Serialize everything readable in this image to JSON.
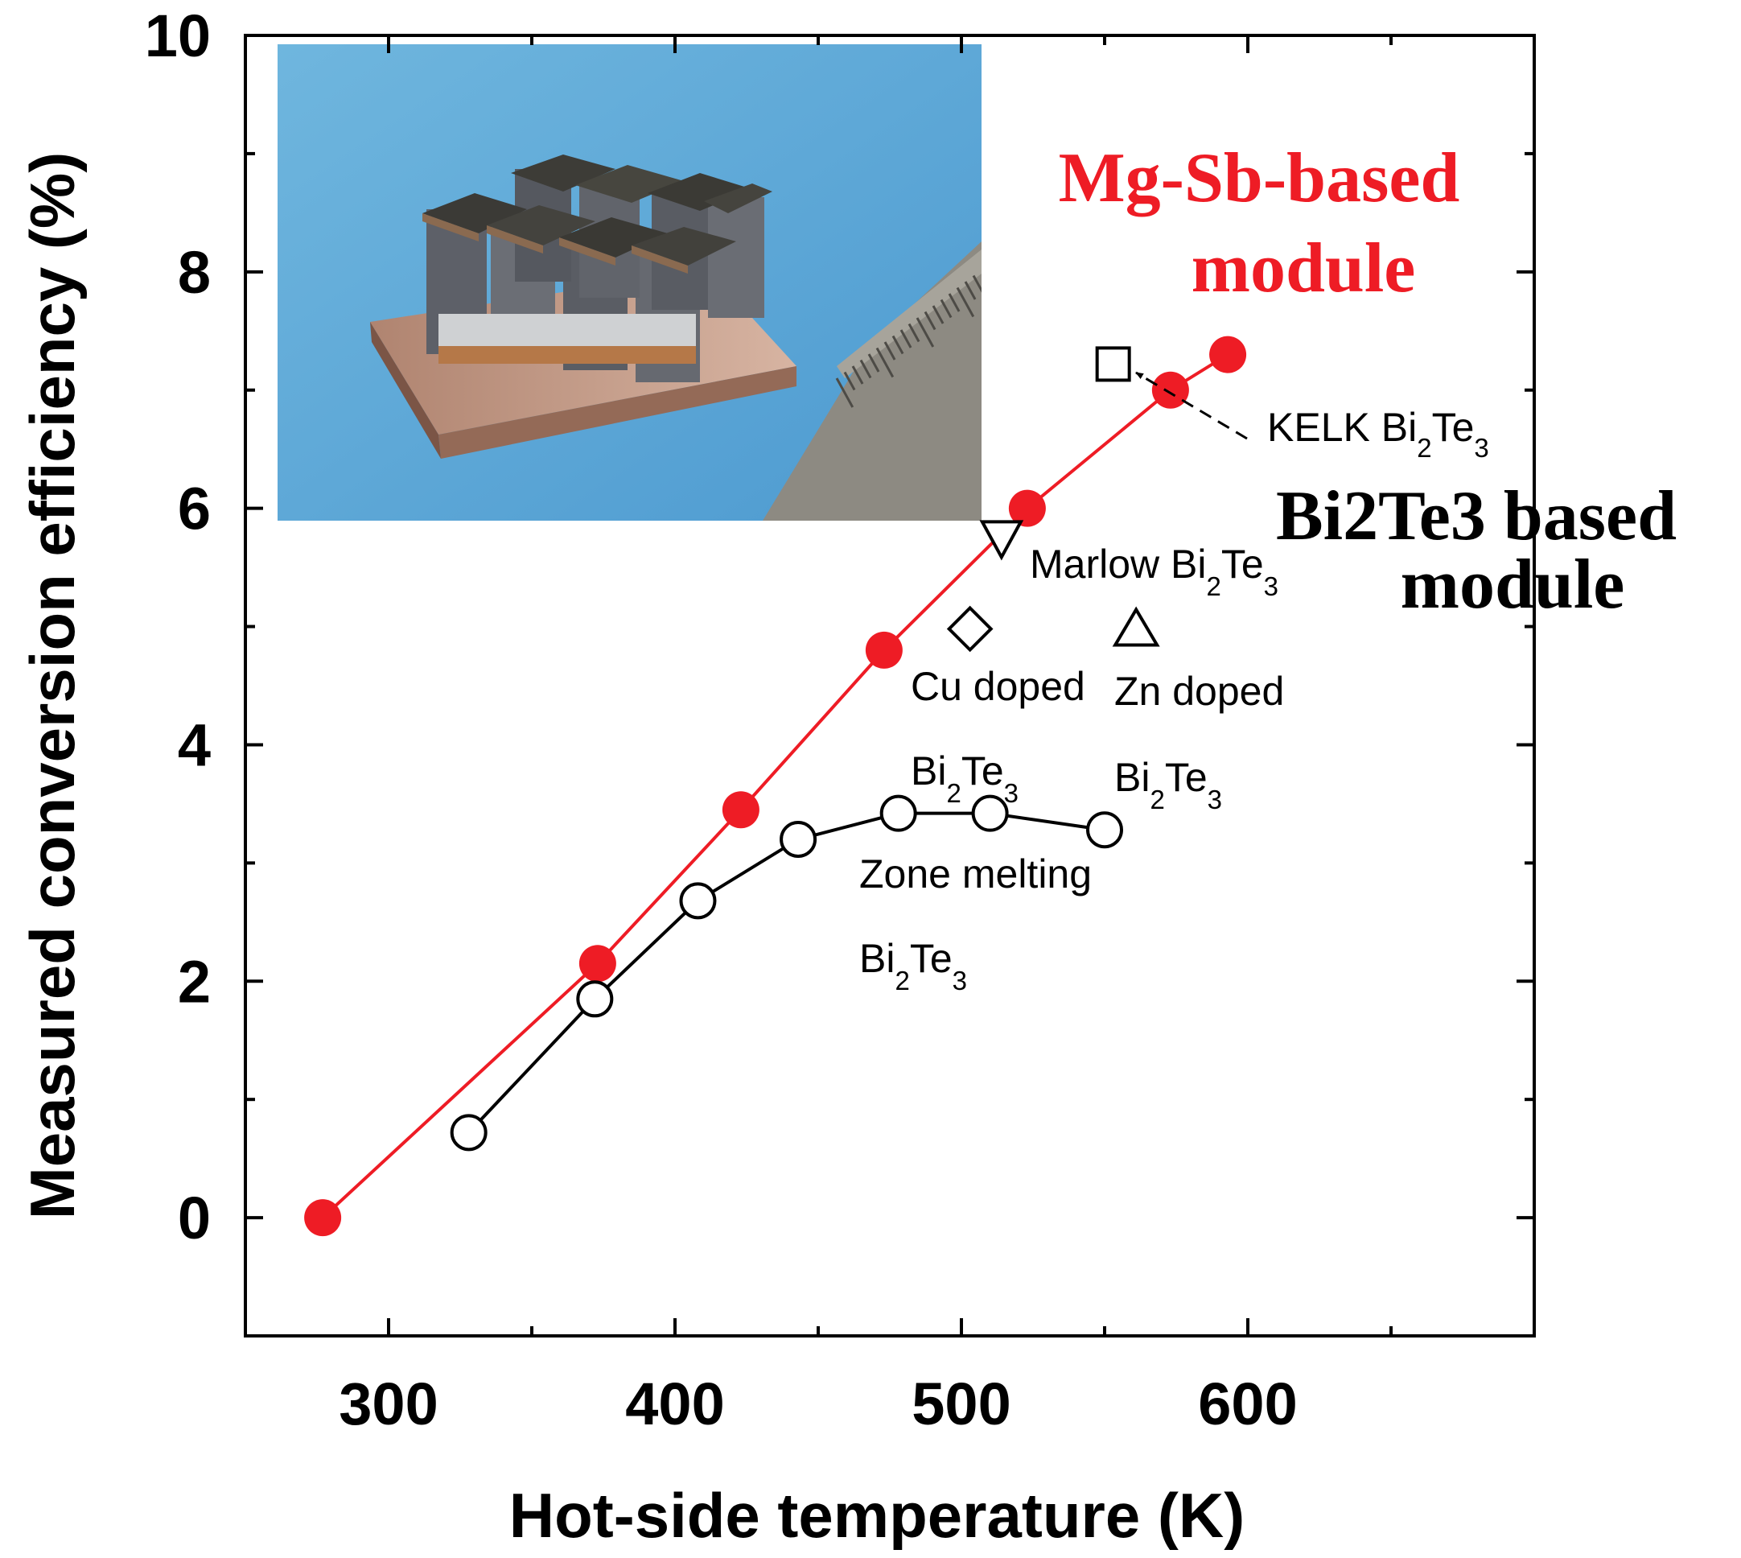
{
  "chart_data": {
    "type": "scatter",
    "title": "",
    "xlabel": "Hot-side temperature (K)",
    "ylabel": "Measured conversion efficiency (%)",
    "xlim": [
      250,
      700
    ],
    "ylim": [
      -1,
      10
    ],
    "x_ticks": [
      "300",
      "400",
      "500",
      "600"
    ],
    "y_ticks": [
      "0",
      "2",
      "4",
      "6",
      "8",
      "10"
    ],
    "grid": false,
    "inset_photo": "thermoelectric-module-photo-with-ruler",
    "series": [
      {
        "name": "Mg-Sb-based module",
        "color": "#ee1c25",
        "marker": "filled-circle",
        "line": true,
        "x": [
          277,
          373,
          423,
          473,
          523,
          573,
          593
        ],
        "y": [
          0.0,
          2.15,
          3.45,
          4.8,
          6.0,
          7.0,
          7.3
        ]
      },
      {
        "name": "Zone melting Bi2Te3",
        "color": "#000000",
        "marker": "open-circle",
        "line": true,
        "x": [
          328,
          372,
          408,
          443,
          478,
          510,
          550
        ],
        "y": [
          0.72,
          1.85,
          2.68,
          3.2,
          3.42,
          3.42,
          3.28
        ]
      },
      {
        "name": "KELK Bi2Te3",
        "marker": "open-square",
        "x": [
          553
        ],
        "y": [
          7.22
        ]
      },
      {
        "name": "Marlow Bi2Te3",
        "marker": "open-triangle-down",
        "x": [
          514
        ],
        "y": [
          5.75
        ]
      },
      {
        "name": "Cu doped",
        "marker": "open-diamond",
        "x": [
          503
        ],
        "y": [
          4.98
        ]
      },
      {
        "name": "Zn doped",
        "marker": "open-triangle-up",
        "x": [
          561
        ],
        "y": [
          4.98
        ]
      }
    ],
    "annotations": {
      "mg_line1": "Mg-Sb-based",
      "mg_line2": "module",
      "kelk": {
        "prefix": "KELK Bi",
        "sub1": "2",
        "mid": "Te",
        "sub2": "3"
      },
      "bi_big": {
        "a": "Bi",
        "b": "2",
        "c": "Te",
        "d": "3",
        "e": " based"
      },
      "bi_big_line2": "module",
      "marlow": {
        "prefix": "Marlow Bi",
        "sub1": "2",
        "mid": "Te",
        "sub2": "3"
      },
      "cu": "Cu doped",
      "zn": "Zn doped",
      "bite1": {
        "prefix": "Bi",
        "sub1": "2",
        "mid": "Te",
        "sub2": "3"
      },
      "bite2": {
        "prefix": "Bi",
        "sub1": "2",
        "mid": "Te",
        "sub2": "3"
      },
      "zone": "Zone melting",
      "bite3": {
        "prefix": "Bi",
        "sub1": "2",
        "mid": "Te",
        "sub2": "3"
      }
    }
  }
}
